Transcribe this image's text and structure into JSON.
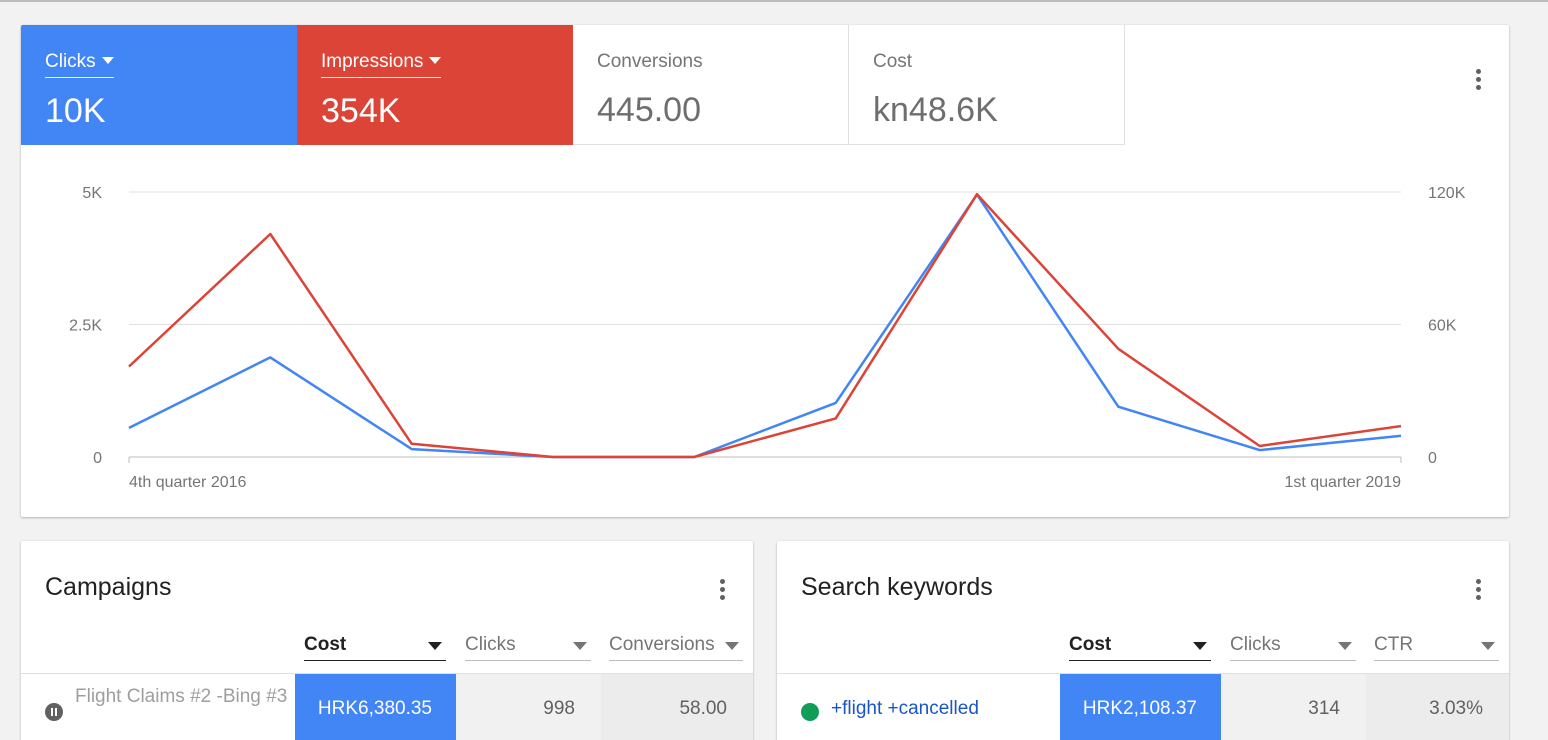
{
  "colors": {
    "clicks": "#4285f4",
    "impressions": "#db4437",
    "paused": "#616161",
    "enabled": "#0f9d58",
    "link": "#1a55c6"
  },
  "metrics": [
    {
      "label": "Clicks",
      "value": "10K",
      "selected": true,
      "color": "#4285f4"
    },
    {
      "label": "Impressions",
      "value": "354K",
      "selected": true,
      "color": "#db4437"
    },
    {
      "label": "Conversions",
      "value": "445.00",
      "selected": false
    },
    {
      "label": "Cost",
      "value": "kn48.6K",
      "selected": false
    }
  ],
  "chart_data": {
    "type": "line",
    "x": [
      "4th quarter 2016",
      "",
      "",
      "",
      "",
      "",
      "",
      "",
      "",
      "1st quarter 2019"
    ],
    "x_tick_labels": [
      "4th quarter 2016",
      "1st quarter 2019"
    ],
    "y_left_ticks": [
      "5K",
      "2.5K",
      "0"
    ],
    "y_right_ticks": [
      "120K",
      "60K",
      "0"
    ],
    "y_left_range": [
      0,
      5000
    ],
    "y_right_range": [
      0,
      120000
    ],
    "grid": true,
    "series": [
      {
        "name": "Clicks",
        "axis": "left",
        "color": "#4285f4",
        "values": [
          550,
          1880,
          150,
          0,
          0,
          1020,
          4950,
          950,
          130,
          400
        ]
      },
      {
        "name": "Impressions",
        "axis": "right",
        "color": "#db4437",
        "values": [
          41000,
          101000,
          6000,
          0,
          0,
          17500,
          119000,
          49000,
          5000,
          14000
        ]
      }
    ]
  },
  "campaigns": {
    "title": "Campaigns",
    "columns": [
      "Cost",
      "Clicks",
      "Conversions"
    ],
    "rows": [
      {
        "name": "Flight Claims #2 -Bing #3",
        "status": "paused",
        "cost": "HRK6,380.35",
        "clicks": "998",
        "conversions": "58.00"
      }
    ]
  },
  "keywords": {
    "title": "Search keywords",
    "columns": [
      "Cost",
      "Clicks",
      "CTR"
    ],
    "rows": [
      {
        "keyword": "+flight +cancelled",
        "status": "enabled",
        "cost": "HRK2,108.37",
        "clicks": "314",
        "ctr": "3.03%"
      }
    ]
  }
}
